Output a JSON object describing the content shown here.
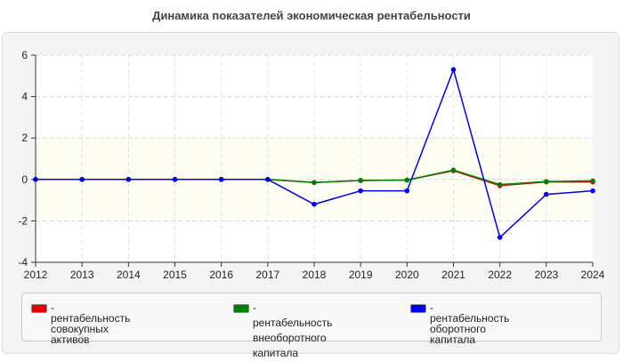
{
  "title": "Динамика показателей экономическая рентабельности",
  "chart_data": {
    "type": "line",
    "x": [
      "2012",
      "2013",
      "2014",
      "2015",
      "2016",
      "2017",
      "2018",
      "2019",
      "2020",
      "2021",
      "2022",
      "2023",
      "2024"
    ],
    "ylim": [
      -4,
      6
    ],
    "yticks": [
      -4,
      -2,
      0,
      2,
      4,
      6
    ],
    "grid": true,
    "legend_position": "bottom",
    "series": [
      {
        "name": "- рентабельность совокупных активов",
        "color": "#e00000",
        "values": [
          0,
          0,
          0,
          0,
          0,
          0,
          -0.15,
          -0.05,
          -0.03,
          0.42,
          -0.3,
          -0.12,
          -0.12
        ]
      },
      {
        "name": "- рентабельность внеоборотного капитала",
        "color": "#008000",
        "values": [
          0,
          0,
          0,
          0,
          0,
          0,
          -0.15,
          -0.05,
          -0.03,
          0.45,
          -0.25,
          -0.1,
          -0.07
        ]
      },
      {
        "name": "- рентабельность оборотного капитала",
        "color": "#0000ee",
        "values": [
          0,
          0,
          0,
          0,
          0,
          0,
          -1.2,
          -0.55,
          -0.55,
          5.3,
          -2.8,
          -0.72,
          -0.55
        ]
      }
    ]
  },
  "legend": [
    {
      "line1": "- рентабельность совокупных",
      "line2": "активов",
      "color": "#e00000"
    },
    {
      "line1": "- рентабельность",
      "line2": "внеоборотного капитала",
      "color": "#008000"
    },
    {
      "line1": "- рентабельность оборотного",
      "line2": "капитала",
      "color": "#0000ee"
    }
  ]
}
